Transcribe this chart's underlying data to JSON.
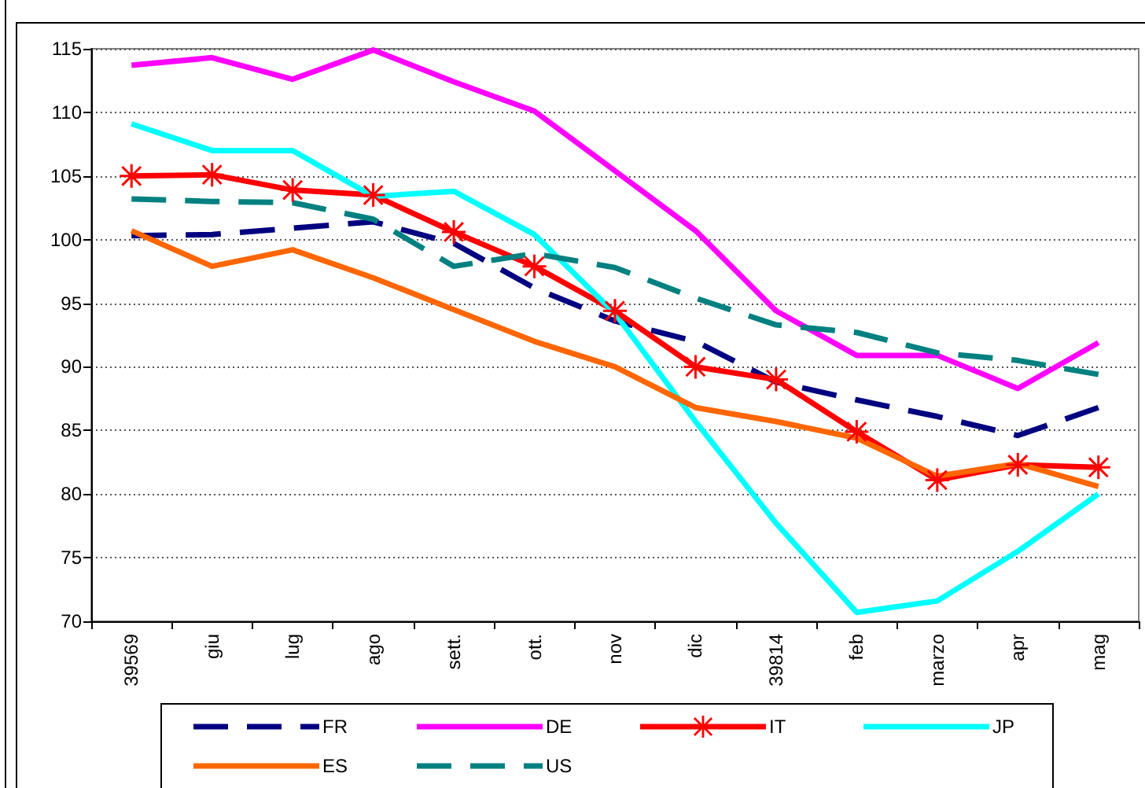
{
  "chart_data": {
    "type": "line",
    "categories": [
      "39569",
      "giu",
      "lug",
      "ago",
      "sett.",
      "ott.",
      "nov",
      "dic",
      "39814",
      "feb",
      "marzo",
      "apr",
      "mag"
    ],
    "series": [
      {
        "name": "FR",
        "color": "#000080",
        "line_style": "dashed",
        "values": [
          100.3,
          100.4,
          100.9,
          101.4,
          99.7,
          96.2,
          93.6,
          92.0,
          88.8,
          87.4,
          86.1,
          84.6,
          86.8
        ]
      },
      {
        "name": "DE",
        "color": "#ff00ff",
        "values": [
          113.7,
          114.3,
          112.6,
          114.9,
          112.4,
          110.1,
          105.4,
          100.7,
          94.4,
          90.9,
          90.9,
          88.3,
          91.9
        ]
      },
      {
        "name": "IT",
        "color": "#ff0000",
        "marker": "star",
        "values": [
          105.0,
          105.1,
          103.9,
          103.5,
          100.6,
          97.9,
          94.4,
          90.0,
          89.0,
          84.9,
          81.1,
          82.3,
          82.1
        ]
      },
      {
        "name": "JP",
        "color": "#00ffff",
        "values": [
          109.1,
          107.0,
          107.0,
          103.4,
          103.8,
          100.4,
          94.2,
          85.7,
          77.7,
          70.7,
          71.6,
          75.5,
          80.0
        ]
      },
      {
        "name": "ES",
        "color": "#ff6600",
        "values": [
          100.7,
          97.9,
          99.2,
          97.0,
          94.5,
          92.0,
          90.0,
          86.8,
          85.7,
          84.4,
          81.4,
          82.4,
          80.6
        ]
      },
      {
        "name": "US",
        "color": "#008080",
        "line_style": "dashed",
        "values": [
          103.2,
          103.0,
          102.9,
          101.6,
          97.9,
          98.9,
          97.8,
          95.4,
          93.3,
          92.7,
          91.1,
          90.5,
          89.4
        ]
      }
    ],
    "ylim": [
      70,
      115
    ],
    "yticks": [
      70,
      75,
      80,
      85,
      90,
      95,
      100,
      105,
      110,
      115
    ],
    "grid": "y",
    "legend": "bottom",
    "marker": "none",
    "line_style": "solid"
  }
}
